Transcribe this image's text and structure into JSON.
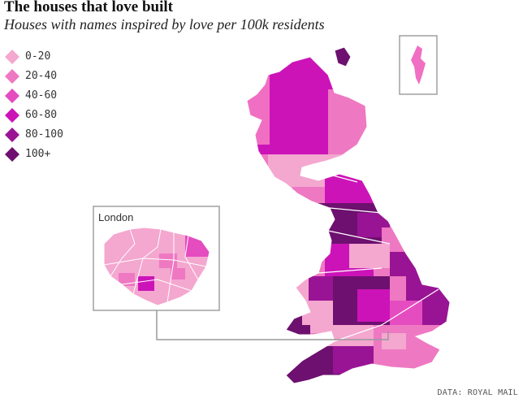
{
  "header": {
    "title": "The houses that love built",
    "subtitle": "Houses with names inspired by love per 100k residents"
  },
  "legend": {
    "items": [
      {
        "label": "0-20",
        "color": "#f4a7cf"
      },
      {
        "label": "20-40",
        "color": "#ee78c2"
      },
      {
        "label": "40-60",
        "color": "#e54cc0"
      },
      {
        "label": "60-80",
        "color": "#cc13b8"
      },
      {
        "label": "80-100",
        "color": "#991494"
      },
      {
        "label": "100+",
        "color": "#6d106f"
      }
    ]
  },
  "inset": {
    "london_label": "London"
  },
  "footer": {
    "source": "DATA: ROYAL MAIL"
  }
}
